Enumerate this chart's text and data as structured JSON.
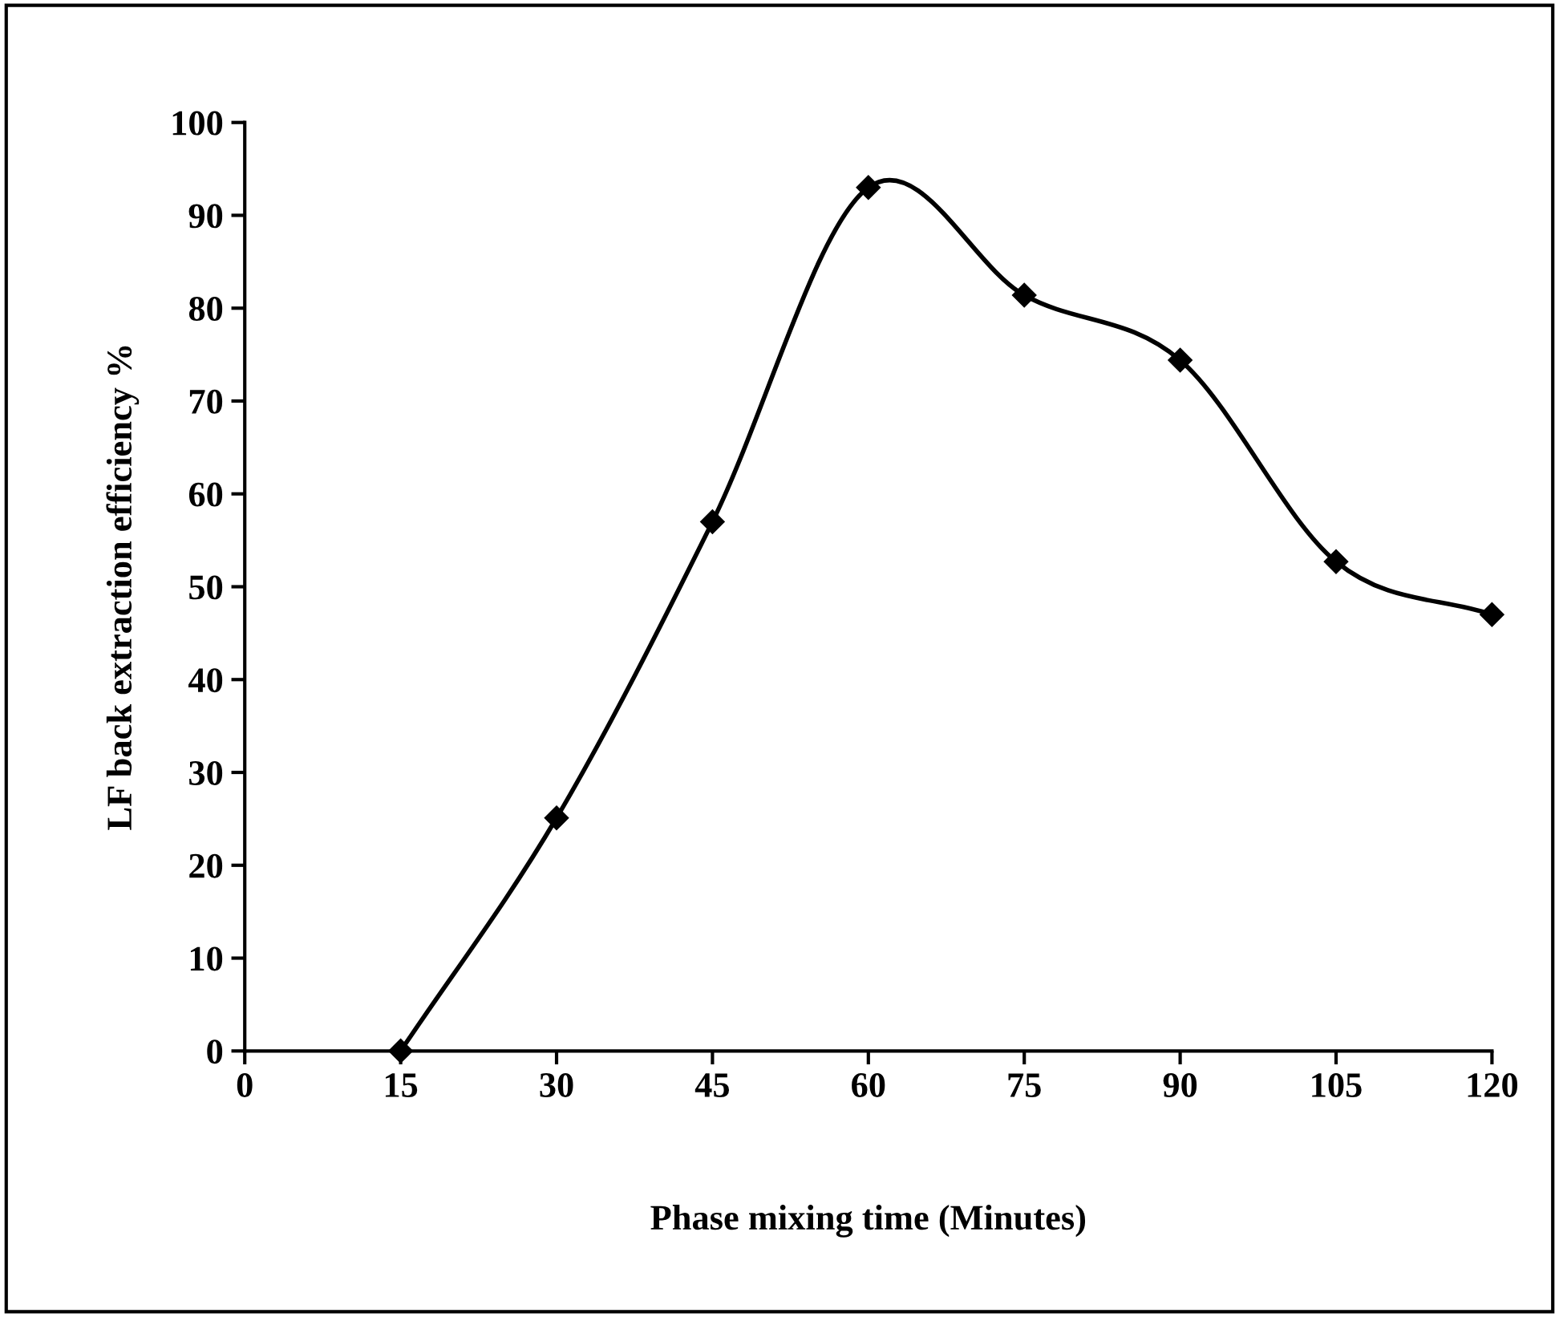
{
  "chart_data": {
    "type": "line",
    "xlabel": "Phase mixing time (Minutes)",
    "ylabel": "LF back extraction efficiency %",
    "x": [
      15,
      30,
      45,
      60,
      75,
      90,
      105,
      120
    ],
    "series": [
      {
        "color": "#000000",
        "values": [
          0,
          25.1,
          57.0,
          93.0,
          81.4,
          74.4,
          52.7,
          47.0
        ]
      }
    ],
    "xlim": [
      0,
      120
    ],
    "xticks": [
      0,
      15,
      30,
      45,
      60,
      75,
      90,
      105,
      120
    ],
    "ylim": [
      0,
      100
    ],
    "yticks": [
      0,
      10,
      20,
      30,
      40,
      50,
      60,
      70,
      80,
      90,
      100
    ],
    "marker": "diamond",
    "line_style": "solid",
    "grid": false,
    "legend": false
  }
}
